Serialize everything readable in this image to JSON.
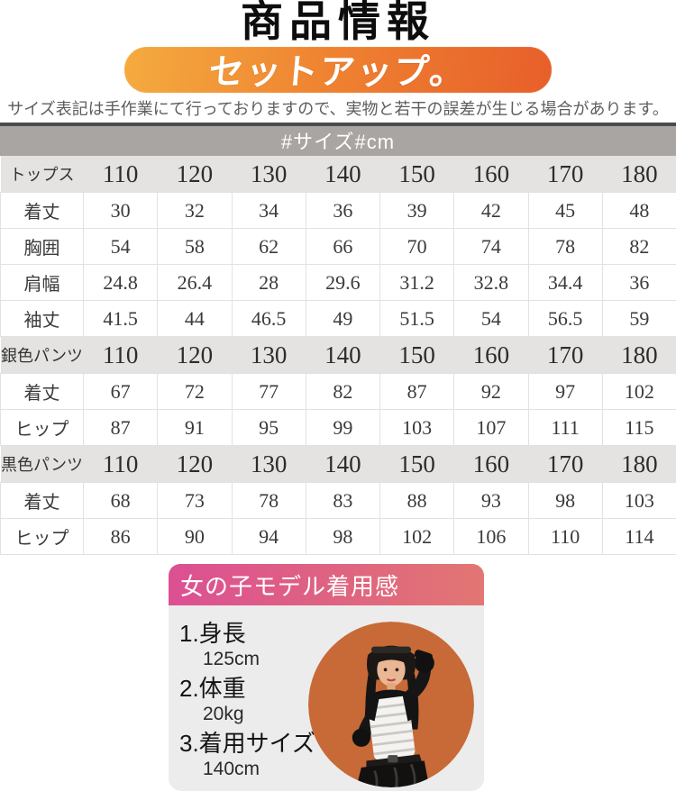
{
  "header": {
    "title": "商品情報",
    "banner": "セットアップ。",
    "disclaimer": "サイズ表記は手作業にて行っておりますので、実物と若干の誤差が生じる場合があります。"
  },
  "colors": {
    "banner_orange_start": "#f4ab3f",
    "banner_orange_end": "#e75f2a",
    "table_caption_bg": "#a8a5a2",
    "band_row_bg": "#e4e3e2",
    "model_header_pink_start": "#dc5093",
    "model_header_pink_end": "#e27673",
    "model_box_bg": "#ececec",
    "photo_circle_bg": "#c76a37"
  },
  "size_table": {
    "caption": "#サイズ#cm",
    "sections": [
      {
        "label": "トップス",
        "sizes": [
          "110",
          "120",
          "130",
          "140",
          "150",
          "160",
          "170",
          "180"
        ],
        "rows": [
          {
            "label": "着丈",
            "values": [
              "30",
              "32",
              "34",
              "36",
              "39",
              "42",
              "45",
              "48"
            ]
          },
          {
            "label": "胸囲",
            "values": [
              "54",
              "58",
              "62",
              "66",
              "70",
              "74",
              "78",
              "82"
            ]
          },
          {
            "label": "肩幅",
            "values": [
              "24.8",
              "26.4",
              "28",
              "29.6",
              "31.2",
              "32.8",
              "34.4",
              "36"
            ]
          },
          {
            "label": "袖丈",
            "values": [
              "41.5",
              "44",
              "46.5",
              "49",
              "51.5",
              "54",
              "56.5",
              "59"
            ]
          }
        ]
      },
      {
        "label": "銀色パンツ",
        "sizes": [
          "110",
          "120",
          "130",
          "140",
          "150",
          "160",
          "170",
          "180"
        ],
        "rows": [
          {
            "label": "着丈",
            "values": [
              "67",
              "72",
              "77",
              "82",
              "87",
              "92",
              "97",
              "102"
            ]
          },
          {
            "label": "ヒップ",
            "values": [
              "87",
              "91",
              "95",
              "99",
              "103",
              "107",
              "111",
              "115"
            ]
          }
        ]
      },
      {
        "label": "黒色パンツ",
        "sizes": [
          "110",
          "120",
          "130",
          "140",
          "150",
          "160",
          "170",
          "180"
        ],
        "rows": [
          {
            "label": "着丈",
            "values": [
              "68",
              "73",
              "78",
              "83",
              "88",
              "93",
              "98",
              "103"
            ]
          },
          {
            "label": "ヒップ",
            "values": [
              "86",
              "90",
              "94",
              "98",
              "102",
              "106",
              "110",
              "114"
            ]
          }
        ]
      }
    ]
  },
  "model_info": {
    "title": "女の子モデル着用感",
    "items": [
      {
        "label": "1.身長",
        "value": "125cm"
      },
      {
        "label": "2.体重",
        "value": "20kg"
      },
      {
        "label": "3.着用サイズ",
        "value": "140cm"
      }
    ],
    "photo_icon": "girl-model-photo"
  }
}
